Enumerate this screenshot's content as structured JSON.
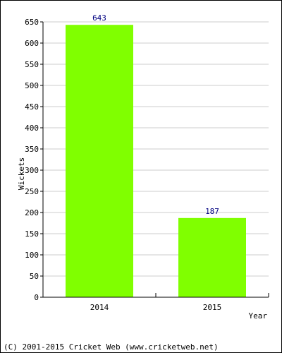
{
  "chart_data": {
    "type": "bar",
    "categories": [
      "2014",
      "2015"
    ],
    "values": [
      643,
      187
    ],
    "data_labels": [
      "643",
      "187"
    ],
    "xlabel": "Year",
    "ylabel": "Wickets",
    "ylim": [
      0,
      650
    ],
    "yticks": [
      0,
      50,
      100,
      150,
      200,
      250,
      300,
      350,
      400,
      450,
      500,
      550,
      600,
      650
    ],
    "grid": true,
    "legend": "none",
    "colors": {
      "bar": "#80ff00",
      "data_label": "#000080",
      "grid": "#cccccc",
      "axis": "#000000"
    }
  },
  "footer": {
    "copyright": "(C) 2001-2015 Cricket Web (www.cricketweb.net)"
  }
}
